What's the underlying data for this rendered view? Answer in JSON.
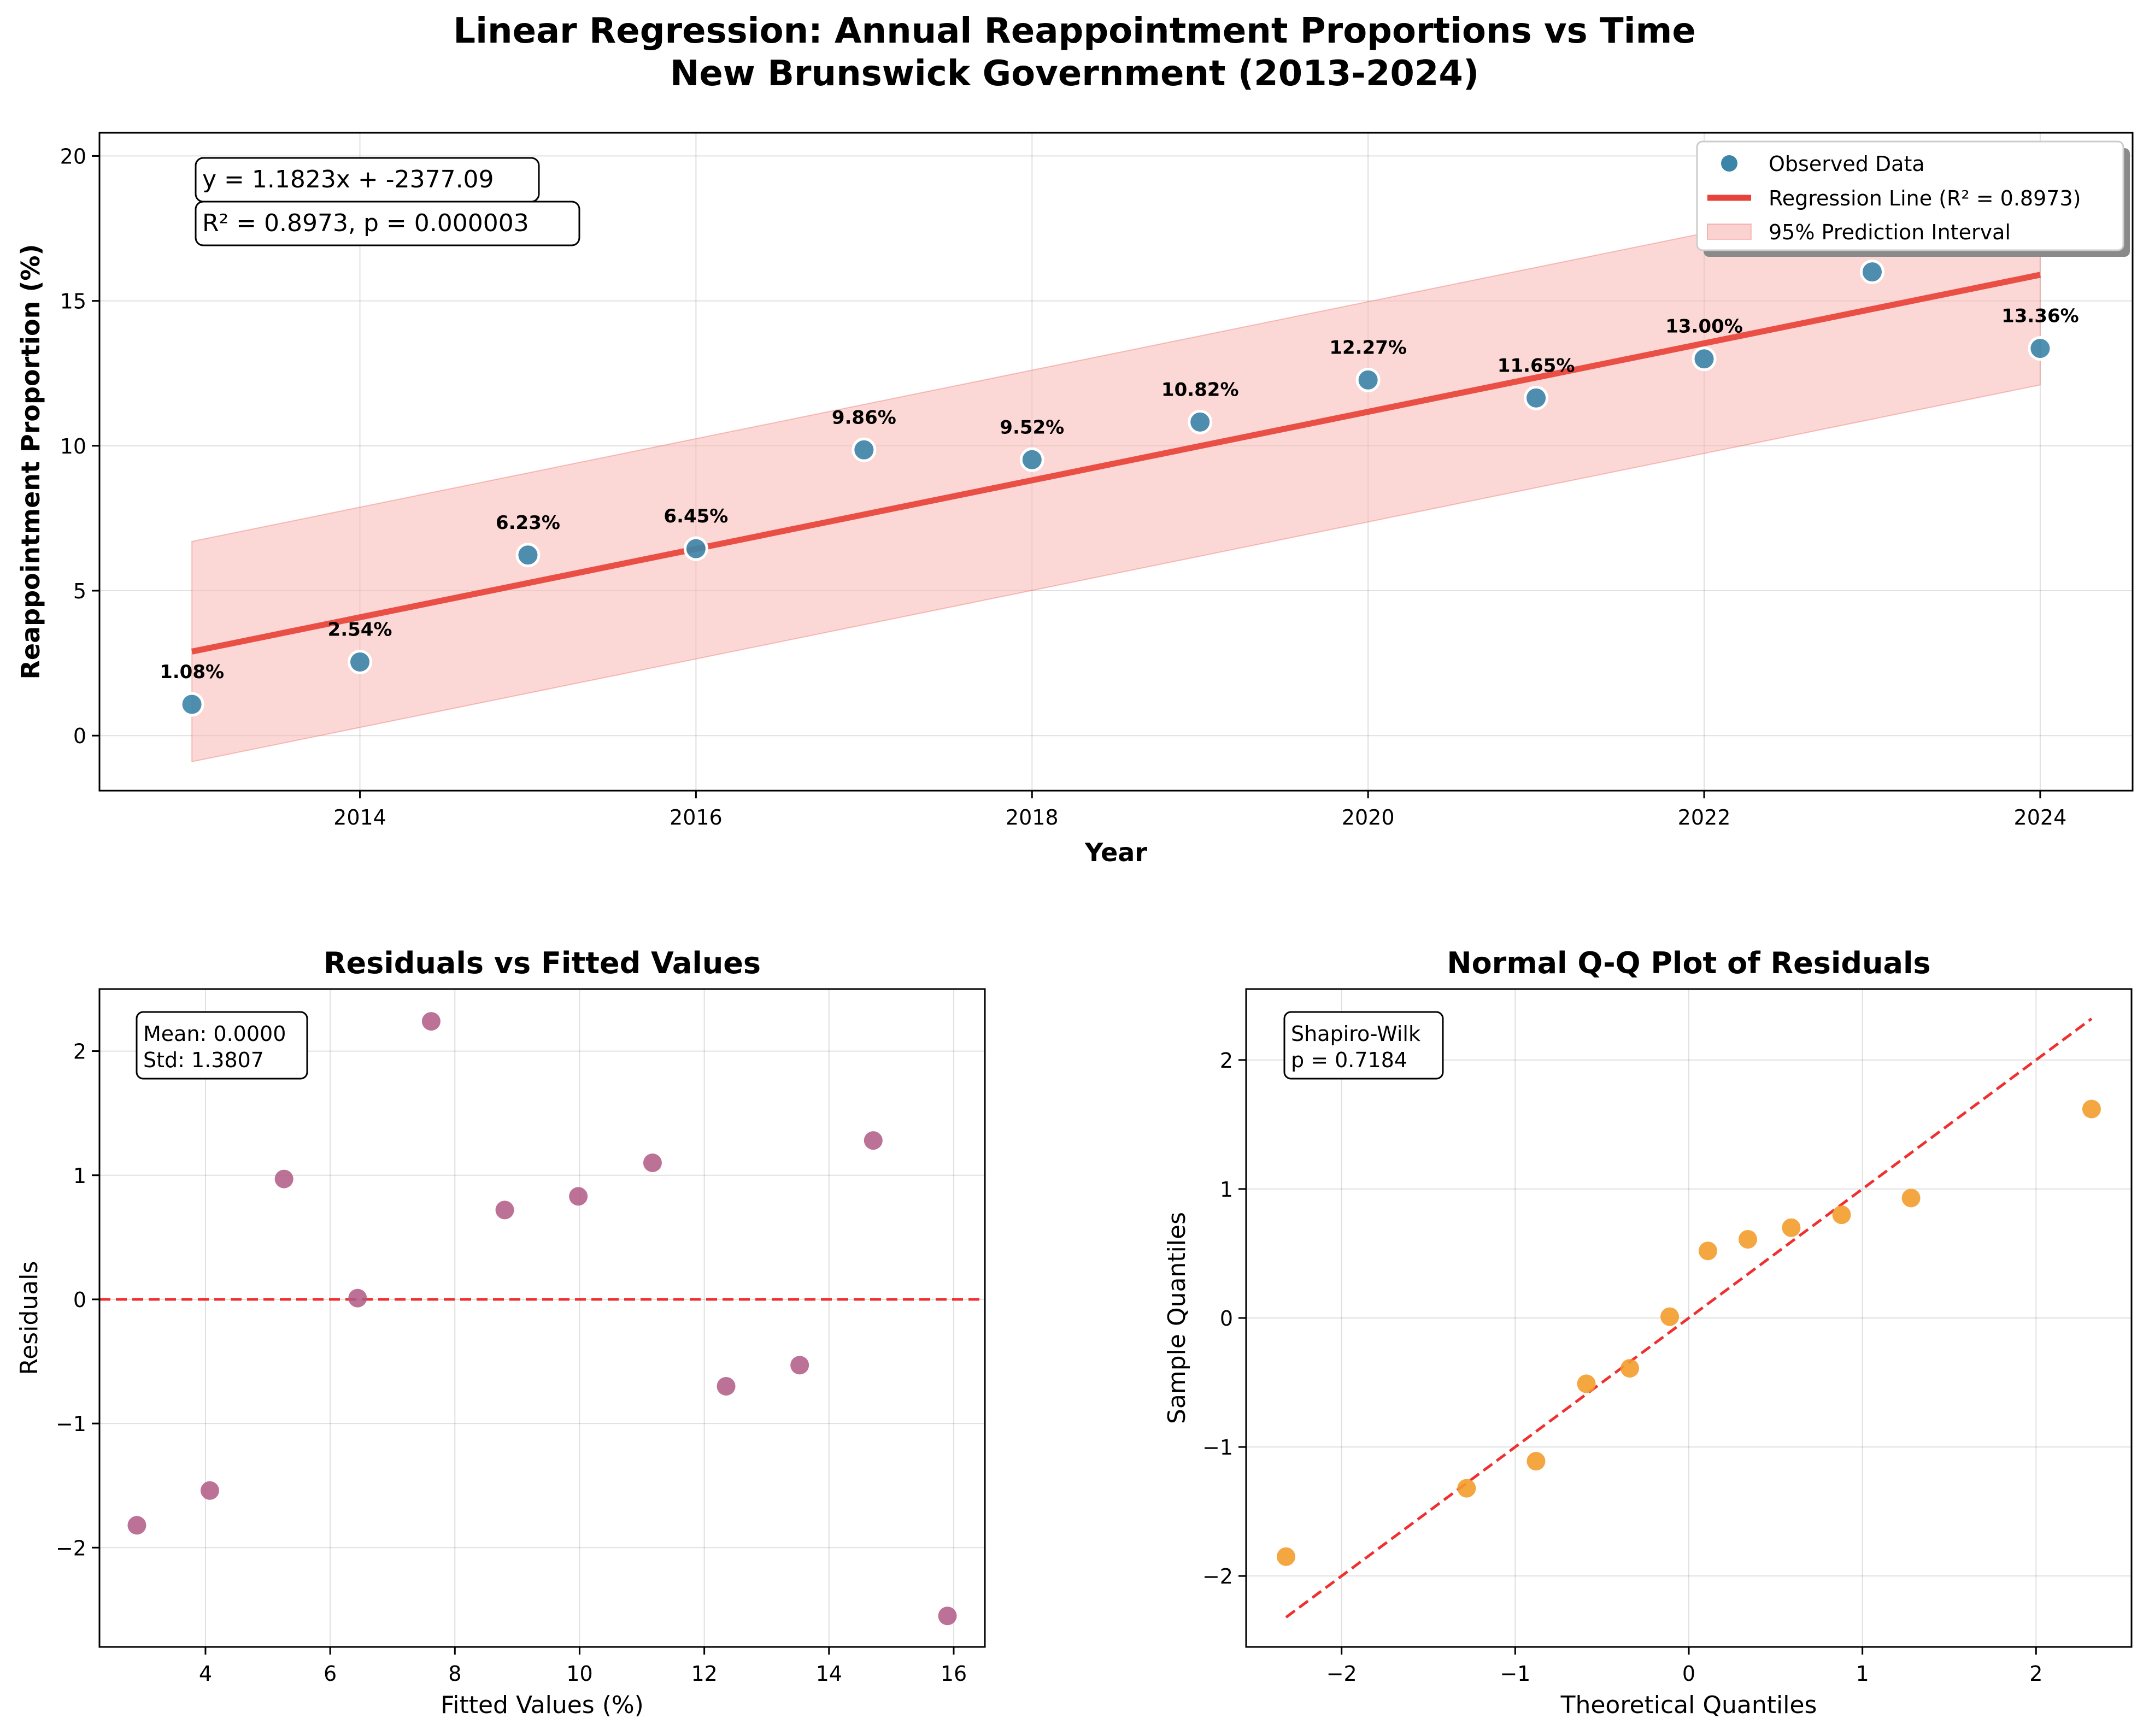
{
  "figure": {
    "title_line1": "Linear Regression: Annual Reappointment Proportions vs Time",
    "title_line2": "New Brunswick Government (2013-2024)"
  },
  "colors": {
    "observed": "#3b85a8",
    "regression": "#e8433a",
    "interval": "#f7b6b3",
    "residual_points": "#b05885",
    "qq_points": "#f39c2c",
    "reference_line": "#f03030"
  },
  "chart_data": [
    {
      "type": "scatter",
      "title": "",
      "xlabel": "Year",
      "ylabel": "Reappointment Proportion (%)",
      "xlim": [
        2012.45,
        2024.55
      ],
      "ylim": [
        -1.9,
        20.8
      ],
      "xticks": [
        "2014",
        "2016",
        "2018",
        "2020",
        "2022",
        "2024"
      ],
      "yticks": [
        "0",
        "5",
        "10",
        "15",
        "20"
      ],
      "grid": true,
      "legend_position": "top-right",
      "annotation_equation": "y = 1.1823x + -2377.09",
      "annotation_stats": "R² = 0.8973, p = 0.000003",
      "series": [
        {
          "name": "Observed Data",
          "kind": "scatter",
          "x": [
            2013,
            2014,
            2015,
            2016,
            2017,
            2018,
            2019,
            2020,
            2021,
            2022,
            2023,
            2024
          ],
          "y": [
            1.08,
            2.54,
            6.23,
            6.45,
            9.86,
            9.52,
            10.82,
            12.27,
            11.65,
            13.0,
            16.0,
            13.36
          ],
          "labels": [
            "1.08%",
            "2.54%",
            "6.23%",
            "6.45%",
            "9.86%",
            "9.52%",
            "10.82%",
            "12.27%",
            "11.65%",
            "13.00%",
            "",
            "13.36%"
          ]
        },
        {
          "name": "Regression Line (R² = 0.8973)",
          "kind": "line",
          "x": [
            2013,
            2024
          ],
          "y": [
            2.9,
            15.9
          ]
        },
        {
          "name": "95% Prediction Interval",
          "kind": "band",
          "x": [
            2013,
            2024
          ],
          "lower": [
            -0.9,
            12.1
          ],
          "upper": [
            6.7,
            19.7
          ]
        }
      ]
    },
    {
      "type": "scatter",
      "title": "Residuals vs Fitted Values",
      "xlabel": "Fitted Values (%)",
      "ylabel": "Residuals",
      "xlim": [
        2.3,
        16.5
      ],
      "ylim": [
        -2.8,
        2.5
      ],
      "xticks": [
        "4",
        "6",
        "8",
        "10",
        "12",
        "14",
        "16"
      ],
      "yticks": [
        "−2",
        "−1",
        "0",
        "1",
        "2"
      ],
      "grid": true,
      "annotation_lines": [
        "Mean: 0.0000",
        "Std: 1.3807"
      ],
      "reference_y": 0,
      "points": {
        "x": [
          2.9,
          4.07,
          5.26,
          6.44,
          7.62,
          8.8,
          9.98,
          11.17,
          12.35,
          13.53,
          14.71,
          15.9
        ],
        "y": [
          -1.82,
          -1.54,
          0.97,
          0.01,
          2.24,
          0.72,
          0.83,
          1.1,
          -0.7,
          -0.53,
          1.28,
          -2.55
        ]
      }
    },
    {
      "type": "scatter",
      "title": "Normal Q-Q Plot of Residuals",
      "xlabel": "Theoretical Quantiles",
      "ylabel": "Sample Quantiles",
      "xlim": [
        -2.55,
        2.55
      ],
      "ylim": [
        -2.55,
        2.55
      ],
      "xticks": [
        "−2",
        "−1",
        "0",
        "1",
        "2"
      ],
      "yticks": [
        "−2",
        "−1",
        "0",
        "1",
        "2"
      ],
      "grid": true,
      "annotation_lines": [
        "Shapiro-Wilk",
        "p = 0.7184"
      ],
      "reference_line": {
        "x": [
          -2.32,
          2.32
        ],
        "y": [
          -2.32,
          2.32
        ]
      },
      "points": {
        "x": [
          -2.32,
          -1.28,
          -0.88,
          -0.59,
          -0.34,
          -0.11,
          0.11,
          0.34,
          0.59,
          0.88,
          1.28,
          2.32
        ],
        "y": [
          -1.85,
          -1.32,
          -1.11,
          -0.51,
          -0.39,
          0.01,
          0.52,
          0.61,
          0.7,
          0.8,
          0.93,
          1.62
        ]
      }
    }
  ]
}
